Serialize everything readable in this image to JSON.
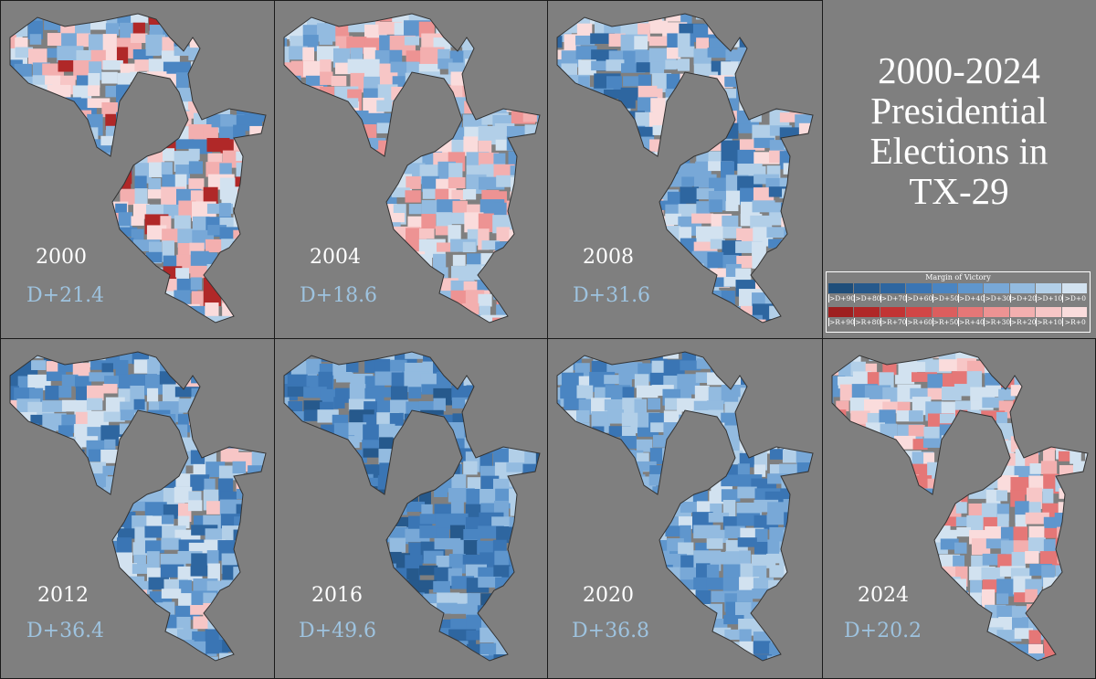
{
  "title": {
    "line1": "2000-2024",
    "line2": "Presidential",
    "line3": "Elections in",
    "line4": "TX-29"
  },
  "legend": {
    "title": "Margin of Victory",
    "dem": [
      {
        "label": ">D+90",
        "color": "#1f4e7a"
      },
      {
        "label": ">D+80",
        "color": "#26598c"
      },
      {
        "label": ">D+70",
        "color": "#2e66a0"
      },
      {
        "label": ">D+60",
        "color": "#3a75b4"
      },
      {
        "label": ">D+50",
        "color": "#4a85c2"
      },
      {
        "label": ">D+40",
        "color": "#5f96cd"
      },
      {
        "label": ">D+30",
        "color": "#78a8d7"
      },
      {
        "label": ">D+20",
        "color": "#93bbe0"
      },
      {
        "label": ">D+10",
        "color": "#b2cfe8"
      },
      {
        "label": ">D+0",
        "color": "#d2e2f0"
      }
    ],
    "rep": [
      {
        "label": ">R+90",
        "color": "#9e1f1f"
      },
      {
        "label": ">R+80",
        "color": "#b02828"
      },
      {
        "label": ">R+70",
        "color": "#c23434"
      },
      {
        "label": ">R+60",
        "color": "#d14646"
      },
      {
        "label": ">R+50",
        "color": "#dc5e5e"
      },
      {
        "label": ">R+40",
        "color": "#e57777"
      },
      {
        "label": ">R+30",
        "color": "#ed9393"
      },
      {
        "label": ">R+20",
        "color": "#f3afaf"
      },
      {
        "label": ">R+10",
        "color": "#f7c6c6"
      },
      {
        "label": ">R+0",
        "color": "#fadcdc"
      }
    ]
  },
  "elections": [
    {
      "year": "2000",
      "margin": "D+21.4",
      "palette": [
        "#d2e2f0",
        "#b2cfe8",
        "#93bbe0",
        "#78a8d7",
        "#5f96cd",
        "#fadcdc",
        "#f7c6c6",
        "#f3afaf",
        "#b02828",
        "#4a85c2"
      ]
    },
    {
      "year": "2004",
      "margin": "D+18.6",
      "palette": [
        "#d2e2f0",
        "#b2cfe8",
        "#93bbe0",
        "#78a8d7",
        "#fadcdc",
        "#f7c6c6",
        "#f3afaf",
        "#5f96cd",
        "#b2cfe8",
        "#ed9393"
      ]
    },
    {
      "year": "2008",
      "margin": "D+31.6",
      "palette": [
        "#b2cfe8",
        "#93bbe0",
        "#78a8d7",
        "#5f96cd",
        "#4a85c2",
        "#d2e2f0",
        "#fadcdc",
        "#2e66a0",
        "#b2cfe8",
        "#f7c6c6"
      ]
    },
    {
      "year": "2012",
      "margin": "D+36.4",
      "palette": [
        "#93bbe0",
        "#78a8d7",
        "#5f96cd",
        "#4a85c2",
        "#3a75b4",
        "#b2cfe8",
        "#d2e2f0",
        "#2e66a0",
        "#93bbe0",
        "#f7c6c6"
      ]
    },
    {
      "year": "2016",
      "margin": "D+49.6",
      "palette": [
        "#5f96cd",
        "#4a85c2",
        "#3a75b4",
        "#2e66a0",
        "#78a8d7",
        "#93bbe0",
        "#26598c",
        "#4a85c2",
        "#3a75b4",
        "#b2cfe8"
      ]
    },
    {
      "year": "2020",
      "margin": "D+36.8",
      "palette": [
        "#93bbe0",
        "#78a8d7",
        "#5f96cd",
        "#b2cfe8",
        "#4a85c2",
        "#d2e2f0",
        "#3a75b4",
        "#78a8d7",
        "#93bbe0",
        "#b2cfe8"
      ]
    },
    {
      "year": "2024",
      "margin": "D+20.2",
      "palette": [
        "#d2e2f0",
        "#b2cfe8",
        "#93bbe0",
        "#fadcdc",
        "#f7c6c6",
        "#78a8d7",
        "#f3afaf",
        "#d2e2f0",
        "#5f96cd",
        "#e57777"
      ]
    }
  ]
}
